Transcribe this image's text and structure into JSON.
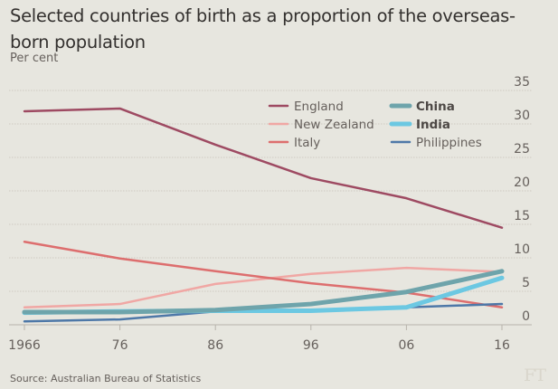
{
  "chart_data": {
    "type": "line",
    "title": "Selected countries of birth as a proportion of the overseas-born population",
    "subtitle": "Per cent",
    "xlabel": "",
    "ylabel": "Per cent",
    "x": [
      1966,
      1976,
      1986,
      1996,
      2006,
      2016
    ],
    "x_tick_labels": [
      "1966",
      "76",
      "86",
      "96",
      "06",
      "16"
    ],
    "ylim": [
      0,
      35
    ],
    "y_ticks": [
      0,
      5,
      10,
      15,
      20,
      25,
      30,
      35
    ],
    "y_tick_labels": [
      "0",
      "5",
      "10",
      "15",
      "20",
      "25",
      "30",
      "35"
    ],
    "y_axis_side": "right",
    "grid": true,
    "legend_placement": "top-right",
    "series": [
      {
        "name": "England",
        "color": "#9e4a62",
        "emphasis": false,
        "values": [
          31.9,
          32.3,
          26.9,
          21.9,
          18.9,
          14.5
        ]
      },
      {
        "name": "New Zealand",
        "color": "#f0a7a4",
        "emphasis": false,
        "values": [
          2.6,
          3.1,
          6.1,
          7.6,
          8.5,
          7.9
        ]
      },
      {
        "name": "Italy",
        "color": "#dd6e6e",
        "emphasis": false,
        "values": [
          12.4,
          9.9,
          8.0,
          6.2,
          4.8,
          2.6
        ]
      },
      {
        "name": "China",
        "color": "#6ea4ab",
        "emphasis": true,
        "values": [
          1.9,
          1.9,
          2.2,
          3.1,
          4.9,
          8.0
        ]
      },
      {
        "name": "India",
        "color": "#6cc8e2",
        "emphasis": true,
        "values": [
          1.8,
          2.0,
          2.1,
          2.1,
          2.6,
          7.0
        ]
      },
      {
        "name": "Philippines",
        "color": "#4e78a8",
        "emphasis": false,
        "values": [
          0.5,
          0.8,
          2.0,
          2.1,
          2.6,
          3.1
        ]
      }
    ]
  },
  "source": "Source: Australian Bureau of Statistics",
  "logo": "FT"
}
